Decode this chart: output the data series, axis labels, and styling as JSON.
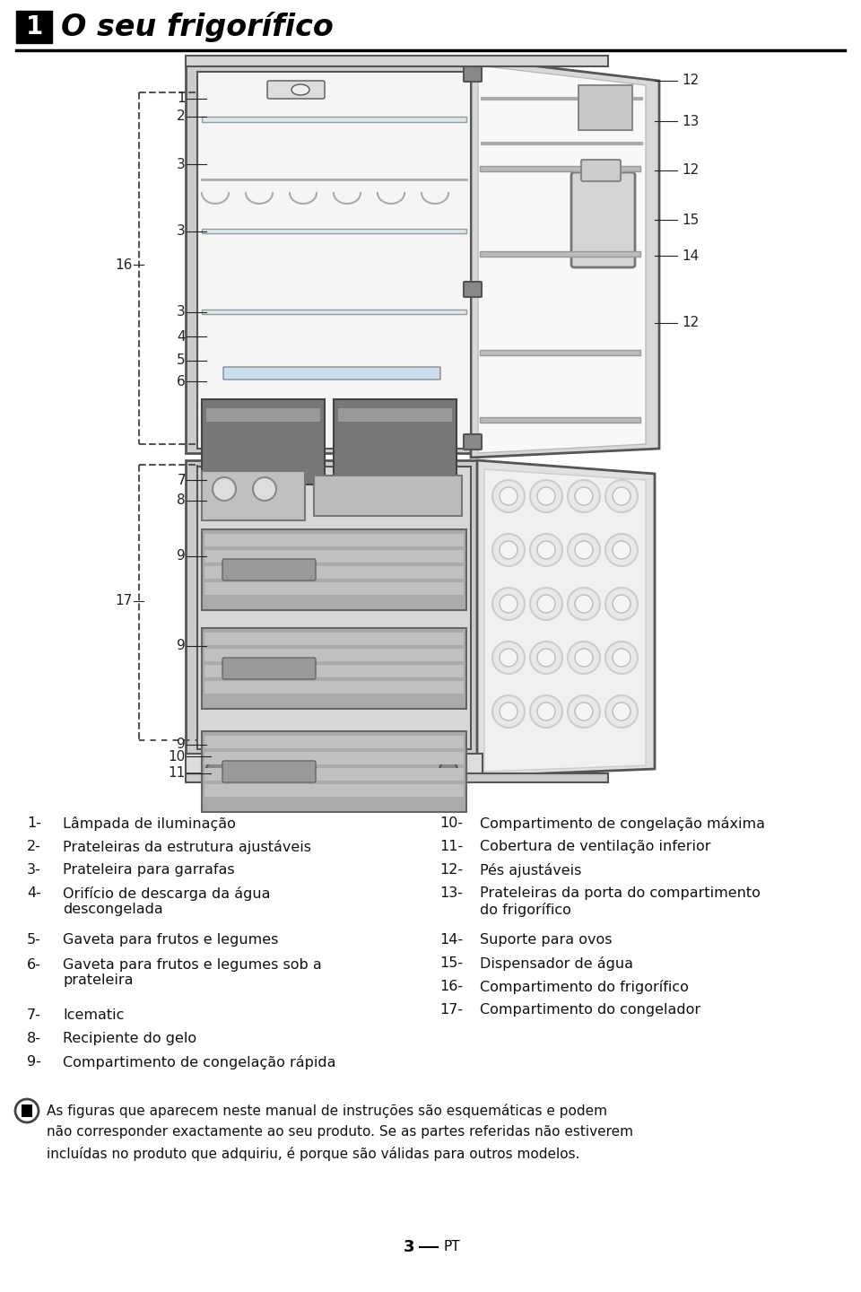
{
  "title": "O seu frigorífico",
  "title_number": "1",
  "background_color": "#ffffff",
  "text_color": "#222222",
  "left_items": [
    {
      "num": "1-",
      "text": "Lâmpada de iluminação"
    },
    {
      "num": "2-",
      "text": "Prateleiras da estrutura ajustáveis"
    },
    {
      "num": "3-",
      "text": "Prateleira para garrafas"
    },
    {
      "num": "4-",
      "text": "Orifício de descarga da água\ndescongelada"
    },
    {
      "num": "5-",
      "text": "Gaveta para frutos e legumes"
    },
    {
      "num": "6-",
      "text": "Gaveta para frutos e legumes sob a\nprateleira"
    },
    {
      "num": "7-",
      "text": "Icematic"
    },
    {
      "num": "8-",
      "text": "Recipiente do gelo"
    },
    {
      "num": "9-",
      "text": "Compartimento de congelação rápida"
    }
  ],
  "right_items": [
    {
      "num": "10-",
      "text": "Compartimento de congelação máxima"
    },
    {
      "num": "11-",
      "text": "Cobertura de ventilação inferior"
    },
    {
      "num": "12-",
      "text": "Pés ajustáveis"
    },
    {
      "num": "13-",
      "text": "Prateleiras da porta do compartimento\ndo frigorífico"
    },
    {
      "num": "14-",
      "text": "Suporte para ovos"
    },
    {
      "num": "15-",
      "text": "Dispensador de água"
    },
    {
      "num": "16-",
      "text": "Compartimento do frigorífico"
    },
    {
      "num": "17-",
      "text": "Compartimento do congelador"
    }
  ],
  "note": "As figuras que aparecem neste manual de instruções são esquemáticas e podem\nnão corresponder exactamente ao seu produto. Se as partes referidas não estiverem\nincluídas no produto que adquiriu, é porque são válidas para outros modelos.",
  "page_number": "3",
  "page_lang": "PT",
  "fridge_color": "#e8e8e8",
  "fridge_dark": "#aaaaaa",
  "fridge_mid": "#cccccc",
  "fridge_inner": "#f0f0f0",
  "drawer_color": "#888888",
  "drawer_dark": "#606060",
  "line_color": "#555555",
  "label_color": "#222222"
}
